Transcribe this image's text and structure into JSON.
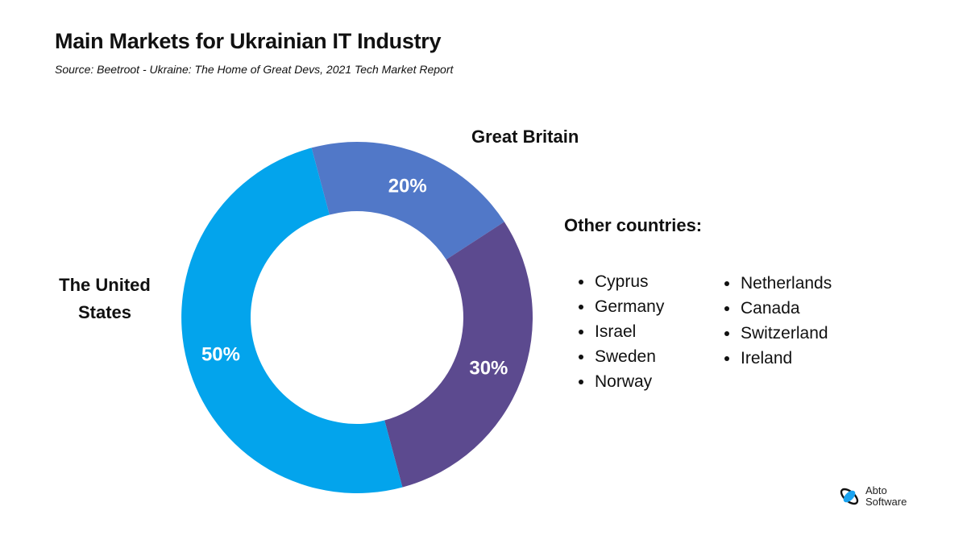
{
  "title": "Main Markets for Ukrainian IT Industry",
  "subtitle": "Source: Beetroot - Ukraine: The Home of Great Devs, 2021 Tech Market Report",
  "chart_data": {
    "type": "pie",
    "donut": true,
    "categories": [
      "Great Britain",
      "Other countries",
      "The United States"
    ],
    "values": [
      20,
      30,
      50
    ],
    "labels": [
      "20%",
      "30%",
      "50%"
    ],
    "colors": [
      "#5178C8",
      "#5C4A8F",
      "#03A4EC"
    ]
  },
  "category_labels": {
    "great_britain": "Great Britain",
    "united_states_line1": "The United",
    "united_states_line2": "States"
  },
  "other_countries": {
    "title": "Other countries:",
    "column1": [
      "Cyprus",
      "Germany",
      "Israel",
      "Sweden",
      "Norway"
    ],
    "column2": [
      "Netherlands",
      "Canada",
      "Switzerland",
      "Ireland"
    ]
  },
  "logo": {
    "line1": "Abto",
    "line2": "Software"
  }
}
